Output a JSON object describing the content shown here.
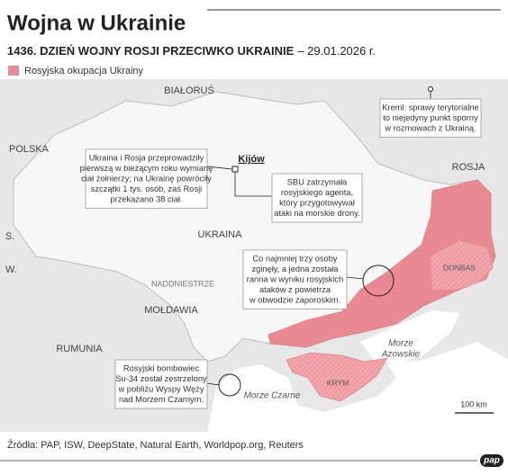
{
  "header": {
    "title": "Wojna w Ukrainie",
    "subtitle_bold": "1436. DZIEŃ WOJNY ROSJI PRZECIWKO UKRAINIE",
    "subtitle_date": "– 29.01.2026 r."
  },
  "legend": {
    "label": "Rosyjska okupacja Ukrainy"
  },
  "places": [
    "BIAŁORUŚ",
    "POLSKA",
    "ROSJA",
    "UKRAINA",
    "S.",
    "W.",
    "NADDNIESTRZE",
    "MOŁDAWIA",
    "RUMUNIA",
    "Kijów",
    "DONBAS",
    "KRYM",
    "Morze Czarne"
  ],
  "seas": {
    "azov": [
      "Morze",
      "Azowskie"
    ]
  },
  "callouts": [
    [
      "Ukraina i Rosja przeprowadziły",
      "pierwszą w bieżącym roku wymianę",
      "ciał żołnierzy; na Ukrainę powróciły",
      "szczątki 1 tys. osób, zaś Rosji",
      "przekazano 38 ciał."
    ],
    [
      "Kreml: sprawy terytorialne",
      "to niejedyny punkt sporny",
      "w rozmowach z Ukrainą."
    ],
    [
      "SBU zatrzymała",
      "rosyjskiego agenta,",
      "który przygotowywał",
      "ataki na morskie drony."
    ],
    [
      "Co najmniej trzy osoby",
      "zginęły, a jedna została",
      "ranna w wyniku rosyjskich",
      "ataków z powietrza",
      "w obwodzie zaporoskim."
    ],
    [
      "Rosyjski bombowiec",
      "Su-34 został zestrzelony",
      "w pobliżu Wyspy Węży",
      "nad Morzem Czarnym."
    ]
  ],
  "scale": "100 km",
  "source": "Źródła: PAP, ISW, DeepState, Natural Earth, Worldpop.org, Reuters",
  "logo": "pap"
}
